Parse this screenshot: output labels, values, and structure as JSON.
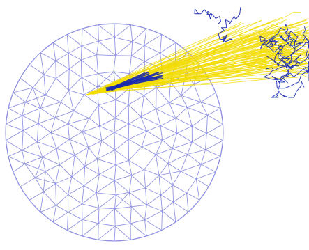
{
  "figure": {
    "kind": "triangulated disk mesh with particle trajectory bundle",
    "colors": {
      "background": "#ffffff",
      "mesh": "#8c8ee0",
      "trajectory_yellow": "#f2dc00",
      "trajectory_blue": "#1a2bb0"
    }
  }
}
